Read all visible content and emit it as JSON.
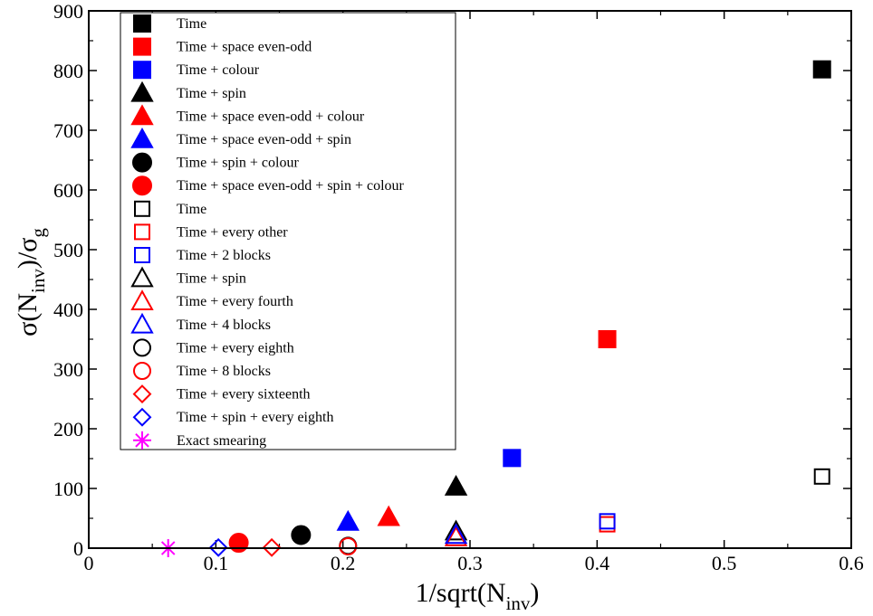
{
  "chart_data": {
    "type": "scatter",
    "title": "",
    "xlabel": {
      "main": "1/sqrt(N",
      "sub": "inv",
      "close": ")"
    },
    "ylabel": {
      "main": "σ(N",
      "sub1": "inv",
      "mid": ")/σ",
      "sub2": "g"
    },
    "xlim": [
      0,
      0.6
    ],
    "ylim": [
      0,
      900
    ],
    "xticks": [
      0,
      0.1,
      0.2,
      0.3,
      0.4,
      0.5,
      0.6
    ],
    "xtick_labels": [
      "0",
      "0.1",
      "0.2",
      "0.3",
      "0.4",
      "0.5",
      "0.6"
    ],
    "yticks": [
      0,
      100,
      200,
      300,
      400,
      500,
      600,
      700,
      800,
      900
    ],
    "ytick_labels": [
      "0",
      "100",
      "200",
      "300",
      "400",
      "500",
      "600",
      "700",
      "800",
      "900"
    ],
    "grid": false,
    "legend_position": "top-left",
    "series": [
      {
        "name": "Time",
        "marker": "square",
        "filled": true,
        "color": "#000000",
        "points": [
          [
            0.577,
            802
          ]
        ]
      },
      {
        "name": "Time + space even-odd",
        "marker": "square",
        "filled": true,
        "color": "#ff0000",
        "points": [
          [
            0.408,
            350
          ]
        ]
      },
      {
        "name": "Time + colour",
        "marker": "square",
        "filled": true,
        "color": "#0000ff",
        "points": [
          [
            0.333,
            151
          ]
        ]
      },
      {
        "name": "Time + spin",
        "marker": "triangle",
        "filled": true,
        "color": "#000000",
        "points": [
          [
            0.289,
            103
          ]
        ]
      },
      {
        "name": "Time + space even-odd + colour",
        "marker": "triangle",
        "filled": true,
        "color": "#ff0000",
        "points": [
          [
            0.236,
            52
          ]
        ]
      },
      {
        "name": "Time + space even-odd + spin",
        "marker": "triangle",
        "filled": true,
        "color": "#0000ff",
        "points": [
          [
            0.204,
            44
          ]
        ]
      },
      {
        "name": "Time + spin + colour",
        "marker": "circle",
        "filled": true,
        "color": "#000000",
        "points": [
          [
            0.167,
            22
          ]
        ]
      },
      {
        "name": "Time + space even-odd + spin + colour",
        "marker": "circle",
        "filled": true,
        "color": "#ff0000",
        "points": [
          [
            0.118,
            9
          ]
        ]
      },
      {
        "name": "Time",
        "marker": "square",
        "filled": false,
        "color": "#000000",
        "points": [
          [
            0.577,
            120
          ]
        ]
      },
      {
        "name": "Time + every other",
        "marker": "square",
        "filled": false,
        "color": "#ff0000",
        "points": [
          [
            0.408,
            40
          ]
        ]
      },
      {
        "name": "Time + 2 blocks",
        "marker": "square",
        "filled": false,
        "color": "#0000ff",
        "points": [
          [
            0.408,
            45
          ]
        ]
      },
      {
        "name": "Time + spin",
        "marker": "triangle",
        "filled": false,
        "color": "#000000",
        "points": [
          [
            0.289,
            28
          ]
        ]
      },
      {
        "name": "Time + every fourth",
        "marker": "triangle",
        "filled": false,
        "color": "#ff0000",
        "points": [
          [
            0.289,
            18
          ]
        ]
      },
      {
        "name": "Time + 4 blocks",
        "marker": "triangle",
        "filled": false,
        "color": "#0000ff",
        "points": [
          [
            0.289,
            22
          ]
        ]
      },
      {
        "name": "Time + every eighth",
        "marker": "circle",
        "filled": false,
        "color": "#000000",
        "points": [
          [
            0.204,
            4
          ]
        ]
      },
      {
        "name": "Time + 8 blocks",
        "marker": "circle",
        "filled": false,
        "color": "#ff0000",
        "points": [
          [
            0.204,
            3
          ]
        ]
      },
      {
        "name": "Time + every sixteenth",
        "marker": "diamond",
        "filled": false,
        "color": "#ff0000",
        "points": [
          [
            0.144,
            1
          ]
        ]
      },
      {
        "name": "Time + spin + every eighth",
        "marker": "diamond",
        "filled": false,
        "color": "#0000ff",
        "points": [
          [
            0.102,
            1
          ]
        ]
      },
      {
        "name": "Exact smearing",
        "marker": "asterisk",
        "filled": false,
        "color": "#ff00ff",
        "points": [
          [
            0.0625,
            0
          ]
        ]
      }
    ]
  }
}
